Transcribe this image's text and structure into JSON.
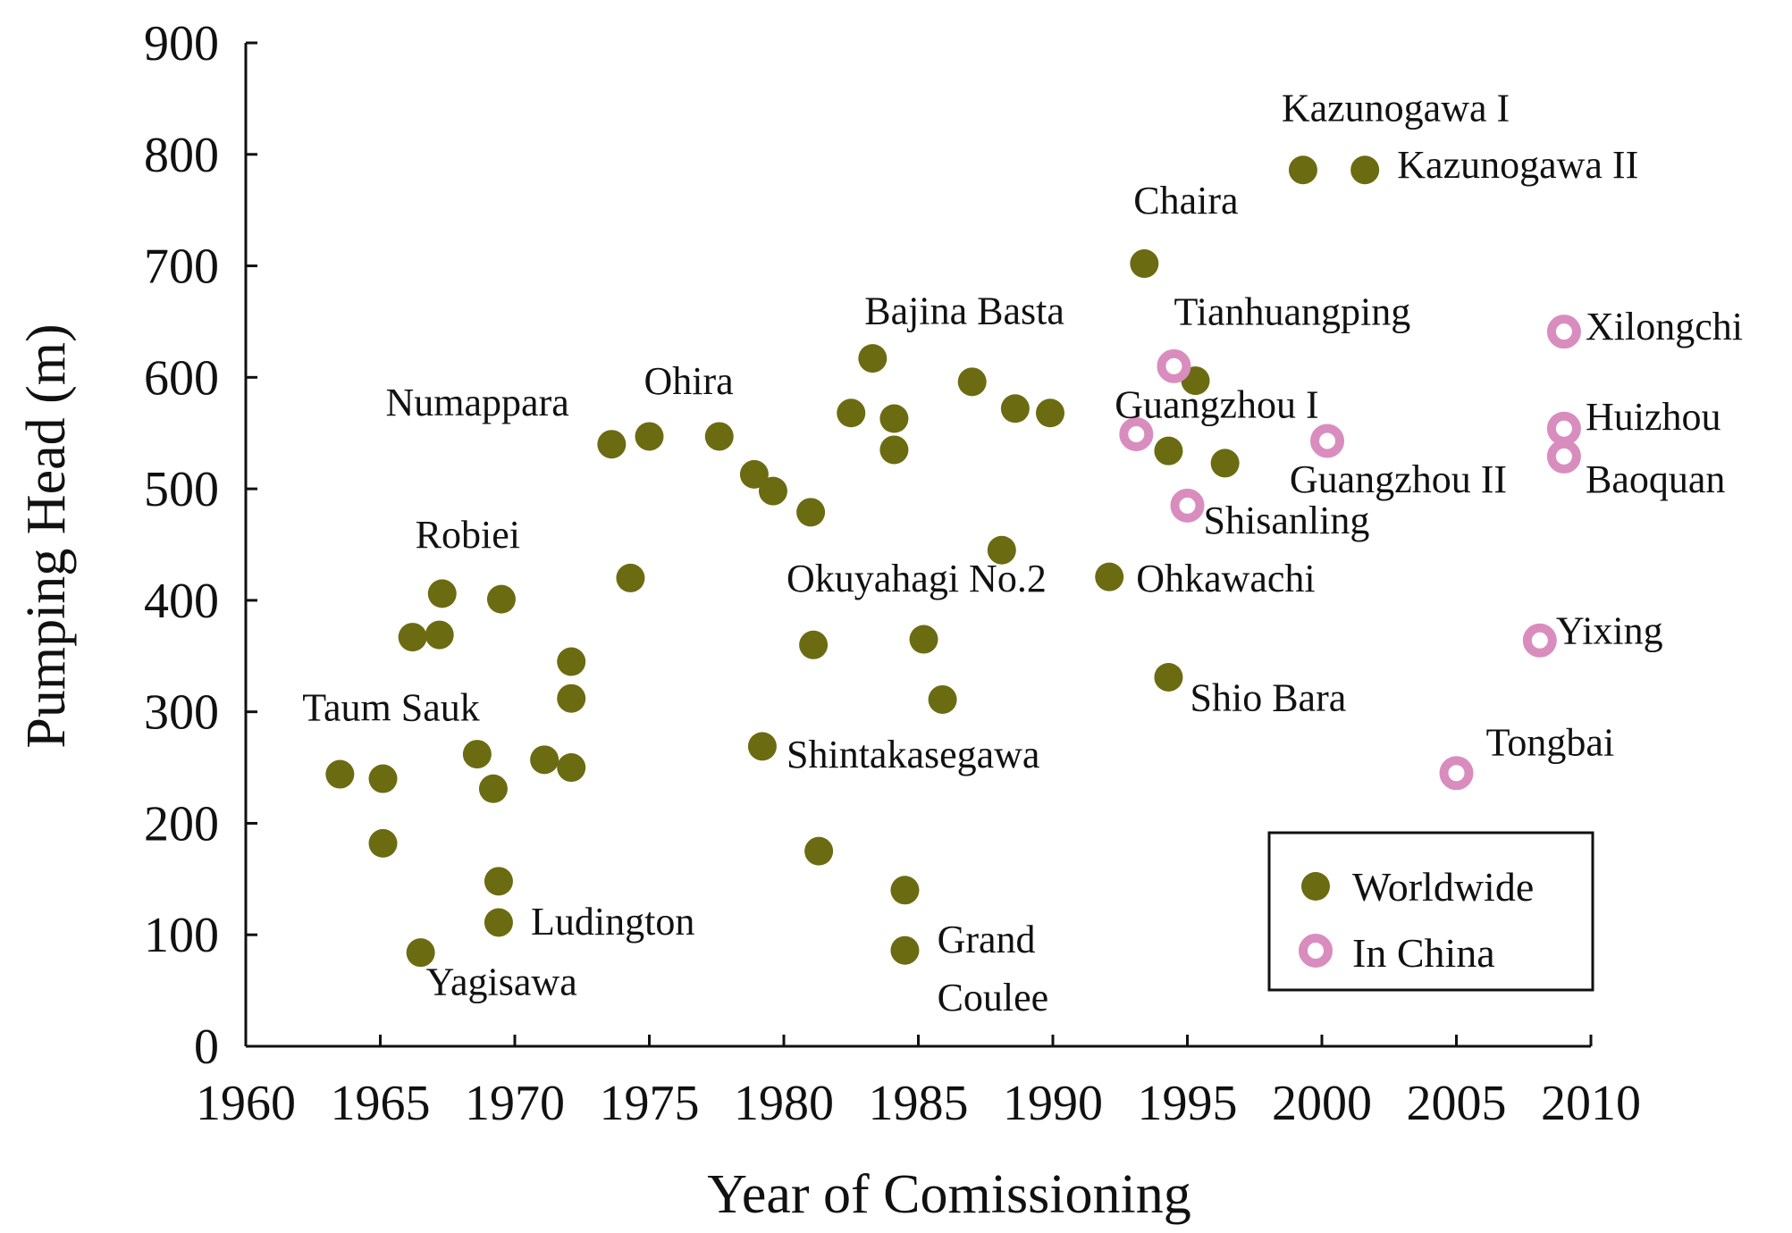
{
  "chart_data": {
    "type": "scatter",
    "title": "",
    "xlabel": "Year of Comissioning",
    "ylabel": "Pumping Head (m)",
    "xlim": [
      1960,
      2010
    ],
    "ylim": [
      0,
      900
    ],
    "xticks": [
      1960,
      1965,
      1970,
      1975,
      1980,
      1985,
      1990,
      1995,
      2000,
      2005,
      2010
    ],
    "yticks": [
      0,
      100,
      200,
      300,
      400,
      500,
      600,
      700,
      800,
      900
    ],
    "grid": false,
    "legend_position": "bottom-right",
    "colors": {
      "worldwide": "#6b6b12",
      "china": "#d98dbe"
    },
    "series": [
      {
        "name": "Worldwide",
        "points": [
          {
            "x": 1963.5,
            "y": 244
          },
          {
            "x": 1965.1,
            "y": 240
          },
          {
            "x": 1965.1,
            "y": 182
          },
          {
            "x": 1966.5,
            "y": 84
          },
          {
            "x": 1966.2,
            "y": 367
          },
          {
            "x": 1967.2,
            "y": 369
          },
          {
            "x": 1967.3,
            "y": 406
          },
          {
            "x": 1968.6,
            "y": 262
          },
          {
            "x": 1969.2,
            "y": 231
          },
          {
            "x": 1969.5,
            "y": 401
          },
          {
            "x": 1969.4,
            "y": 148
          },
          {
            "x": 1969.4,
            "y": 111
          },
          {
            "x": 1971.1,
            "y": 257
          },
          {
            "x": 1972.1,
            "y": 250
          },
          {
            "x": 1972.1,
            "y": 312
          },
          {
            "x": 1972.1,
            "y": 345
          },
          {
            "x": 1973.6,
            "y": 540
          },
          {
            "x": 1974.3,
            "y": 420
          },
          {
            "x": 1975.0,
            "y": 547
          },
          {
            "x": 1977.6,
            "y": 547
          },
          {
            "x": 1978.9,
            "y": 513
          },
          {
            "x": 1979.6,
            "y": 498
          },
          {
            "x": 1979.2,
            "y": 269
          },
          {
            "x": 1981.0,
            "y": 479
          },
          {
            "x": 1981.1,
            "y": 360
          },
          {
            "x": 1981.3,
            "y": 175
          },
          {
            "x": 1982.5,
            "y": 568
          },
          {
            "x": 1983.3,
            "y": 617
          },
          {
            "x": 1984.1,
            "y": 563
          },
          {
            "x": 1984.1,
            "y": 535
          },
          {
            "x": 1984.5,
            "y": 140
          },
          {
            "x": 1984.5,
            "y": 86
          },
          {
            "x": 1985.2,
            "y": 365
          },
          {
            "x": 1985.9,
            "y": 311
          },
          {
            "x": 1987.0,
            "y": 596
          },
          {
            "x": 1988.1,
            "y": 445
          },
          {
            "x": 1988.6,
            "y": 572
          },
          {
            "x": 1989.9,
            "y": 568
          },
          {
            "x": 1992.1,
            "y": 421
          },
          {
            "x": 1993.4,
            "y": 702
          },
          {
            "x": 1994.3,
            "y": 534
          },
          {
            "x": 1994.3,
            "y": 331
          },
          {
            "x": 1995.3,
            "y": 597
          },
          {
            "x": 1996.4,
            "y": 523
          },
          {
            "x": 1999.3,
            "y": 786
          },
          {
            "x": 2001.6,
            "y": 786
          }
        ]
      },
      {
        "name": "In China",
        "points": [
          {
            "x": 1993.1,
            "y": 549
          },
          {
            "x": 1994.5,
            "y": 610
          },
          {
            "x": 1995.0,
            "y": 485
          },
          {
            "x": 2000.2,
            "y": 543
          },
          {
            "x": 2005.0,
            "y": 245
          },
          {
            "x": 2008.1,
            "y": 364
          },
          {
            "x": 2009.0,
            "y": 641
          },
          {
            "x": 2009.0,
            "y": 554
          },
          {
            "x": 2009.0,
            "y": 529
          }
        ]
      }
    ],
    "annotations": [
      {
        "text": "Kazunogawa I",
        "x": 1998.5,
        "y": 830
      },
      {
        "text": "Kazunogawa II",
        "x": 2002.8,
        "y": 779
      },
      {
        "text": "Chaira",
        "x": 1993.0,
        "y": 747
      },
      {
        "text": "Tianhuangping",
        "x": 1994.5,
        "y": 647
      },
      {
        "text": "Xilongchi",
        "x": 2009.8,
        "y": 634
      },
      {
        "text": "Bajina Basta",
        "x": 1983.0,
        "y": 648
      },
      {
        "text": "Ohira",
        "x": 1974.8,
        "y": 585
      },
      {
        "text": "Numappara",
        "x": 1965.2,
        "y": 566
      },
      {
        "text": "Guangzhou I",
        "x": 1992.3,
        "y": 564
      },
      {
        "text": "Huizhou",
        "x": 2009.8,
        "y": 553
      },
      {
        "text": "Guangzhou II",
        "x": 1998.8,
        "y": 497
      },
      {
        "text": "Baoquan",
        "x": 2009.8,
        "y": 497
      },
      {
        "text": "Shisanling",
        "x": 1995.6,
        "y": 460
      },
      {
        "text": "Robiei",
        "x": 1966.3,
        "y": 447
      },
      {
        "text": "Okuyahagi No.2",
        "x": 1980.1,
        "y": 408
      },
      {
        "text": "Ohkawachi",
        "x": 1993.1,
        "y": 408
      },
      {
        "text": "Yixing",
        "x": 2008.7,
        "y": 361
      },
      {
        "text": "Taum Sauk",
        "x": 1962.1,
        "y": 292
      },
      {
        "text": "Shio Bara",
        "x": 1995.1,
        "y": 301
      },
      {
        "text": "Shintakasegawa",
        "x": 1980.1,
        "y": 250
      },
      {
        "text": "Tongbai",
        "x": 2006.1,
        "y": 261
      },
      {
        "text": "Ludington",
        "x": 1970.6,
        "y": 100
      },
      {
        "text": "Grand",
        "x": 1985.7,
        "y": 84
      },
      {
        "text": "Yagisawa",
        "x": 1966.7,
        "y": 46
      },
      {
        "text": "Coulee",
        "x": 1985.7,
        "y": 32
      }
    ]
  }
}
